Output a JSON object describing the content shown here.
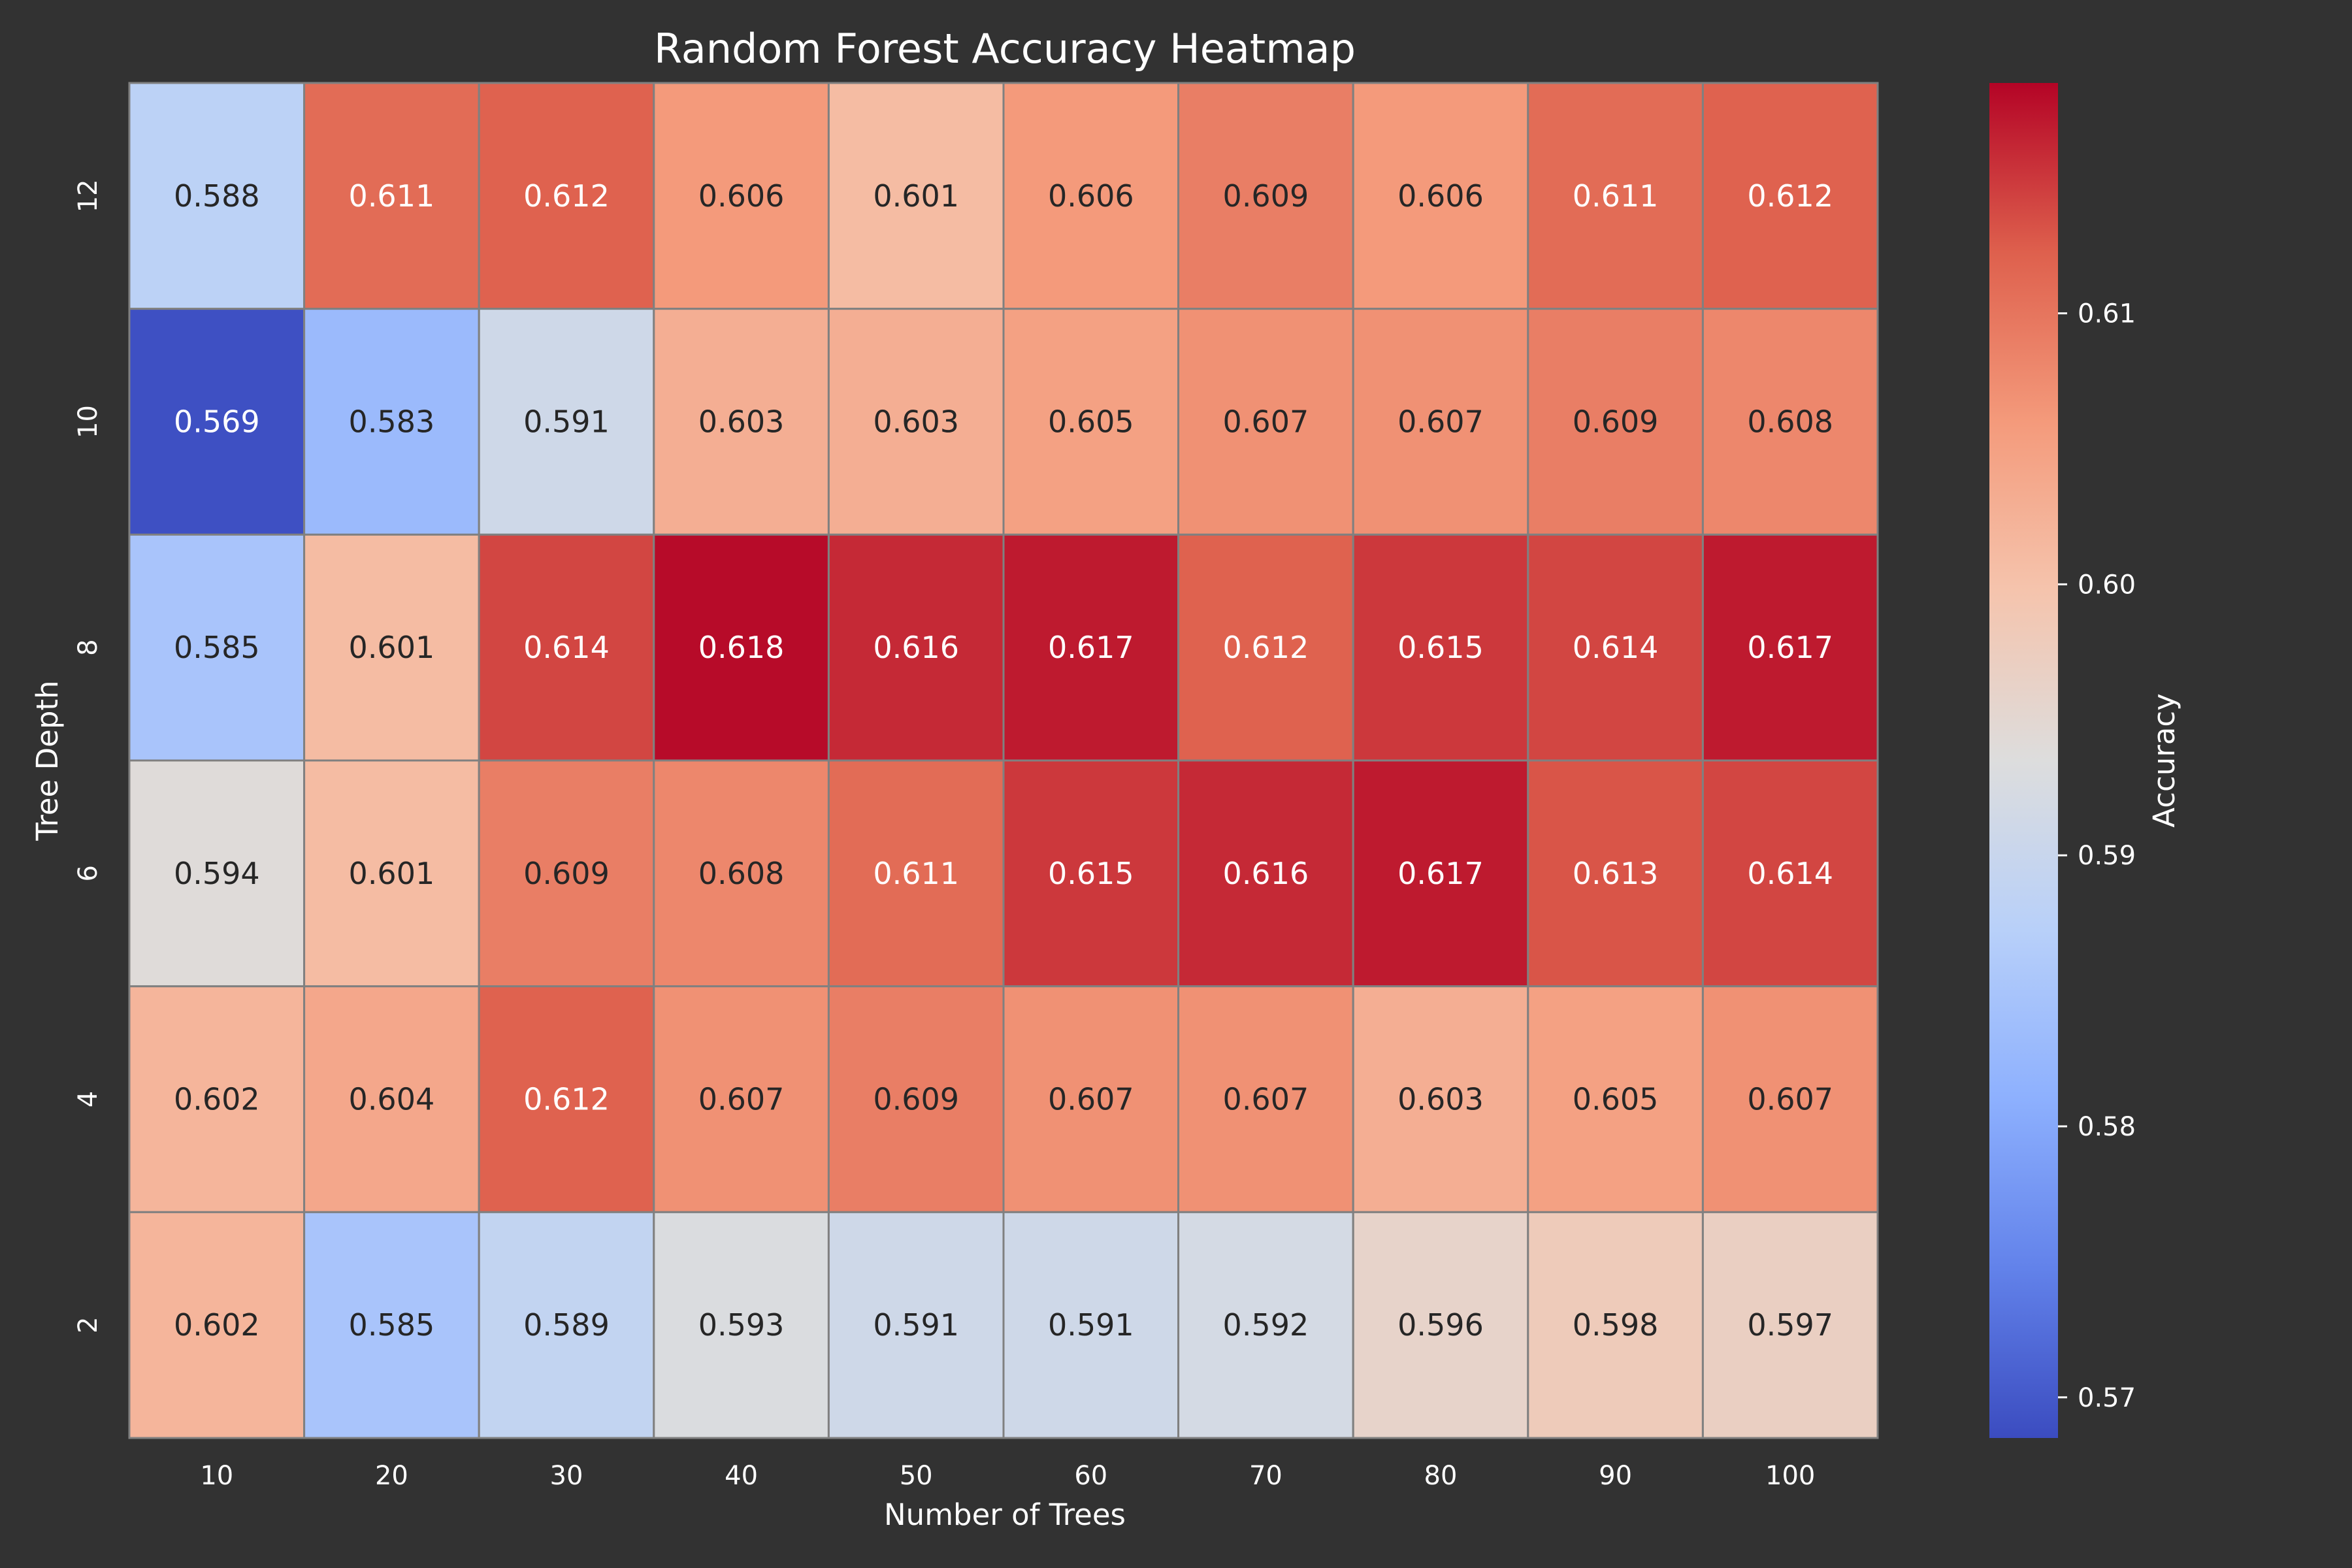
{
  "chart_data": {
    "type": "heatmap",
    "title": "Random Forest Accuracy Heatmap",
    "xlabel": "Number of Trees",
    "ylabel": "Tree Depth",
    "x_categories": [
      "10",
      "20",
      "30",
      "40",
      "50",
      "60",
      "70",
      "80",
      "90",
      "100"
    ],
    "y_categories": [
      "12",
      "10",
      "8",
      "6",
      "4",
      "2"
    ],
    "values": [
      [
        0.588,
        0.611,
        0.612,
        0.606,
        0.601,
        0.606,
        0.609,
        0.606,
        0.611,
        0.612
      ],
      [
        0.569,
        0.583,
        0.591,
        0.603,
        0.603,
        0.605,
        0.607,
        0.607,
        0.609,
        0.608
      ],
      [
        0.585,
        0.601,
        0.614,
        0.618,
        0.616,
        0.617,
        0.612,
        0.615,
        0.614,
        0.617
      ],
      [
        0.594,
        0.601,
        0.609,
        0.608,
        0.611,
        0.615,
        0.616,
        0.617,
        0.613,
        0.614
      ],
      [
        0.602,
        0.604,
        0.612,
        0.607,
        0.609,
        0.607,
        0.607,
        0.603,
        0.605,
        0.607
      ],
      [
        0.602,
        0.585,
        0.589,
        0.593,
        0.591,
        0.591,
        0.592,
        0.596,
        0.598,
        0.597
      ]
    ],
    "colorbar": {
      "label": "Accuracy",
      "min": 0.5685,
      "max": 0.6185,
      "ticks": [
        0.57,
        0.58,
        0.59,
        0.6,
        0.61
      ],
      "tick_labels": [
        "0.57",
        "0.58",
        "0.59",
        "0.60",
        "0.61"
      ],
      "colormap": "coolwarm"
    },
    "annotations": true,
    "colors": {
      "background": "#323232",
      "cell_border": "#808080",
      "text_light": "#ffffff",
      "text_dark": "#262626"
    }
  }
}
